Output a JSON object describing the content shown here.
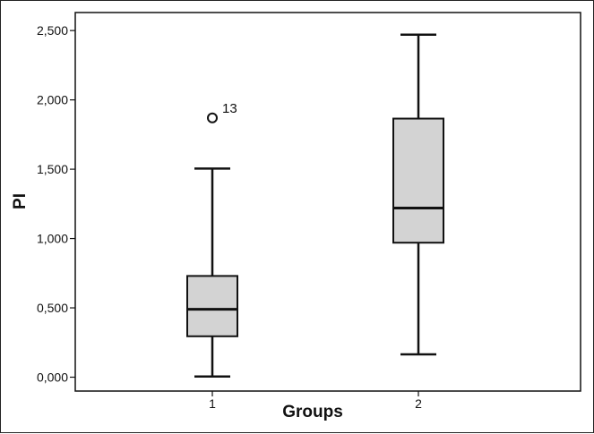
{
  "chart_data": {
    "type": "box",
    "xlabel": "Groups",
    "ylabel": "PI",
    "ylim": [
      -0.1,
      2.63
    ],
    "yticks": [
      0,
      0.5,
      1,
      1.5,
      2,
      2.5
    ],
    "ytick_labels": [
      "0,000",
      "0,500",
      "1,000",
      "1,500",
      "2,000",
      "2,500"
    ],
    "grid": false,
    "box_color": "#d3d3d3",
    "line_color": "#111111",
    "categories": [
      "1",
      "2"
    ],
    "boxes": [
      {
        "category": "1",
        "whisker_low": 0.005,
        "q1": 0.295,
        "median": 0.49,
        "q3": 0.73,
        "whisker_high": 1.505,
        "outliers": [
          {
            "value": 1.87,
            "label": "13"
          }
        ]
      },
      {
        "category": "2",
        "whisker_low": 0.165,
        "q1": 0.97,
        "median": 1.22,
        "q3": 1.865,
        "whisker_high": 2.47,
        "outliers": []
      }
    ]
  }
}
